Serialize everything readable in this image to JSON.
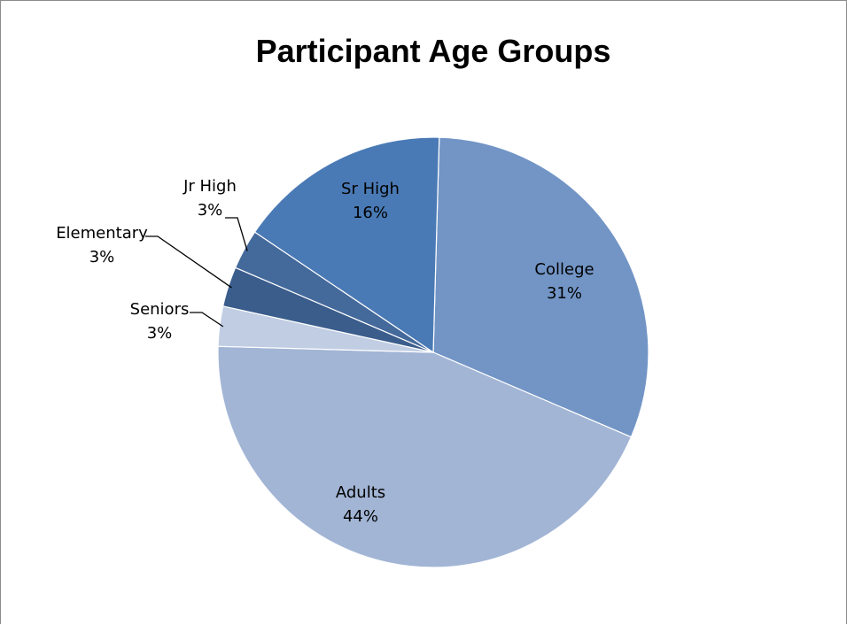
{
  "chart_data": {
    "type": "pie",
    "title": "Participant Age Groups",
    "slices": [
      {
        "label": "College",
        "value": 31,
        "value_label": "31%",
        "color": "#7295c6"
      },
      {
        "label": "Adults",
        "value": 44,
        "value_label": "44%",
        "color": "#a2b5d5"
      },
      {
        "label": "Seniors",
        "value": 3,
        "value_label": "3%",
        "color": "#c0cde3"
      },
      {
        "label": "Elementary",
        "value": 3,
        "value_label": "3%",
        "color": "#3a5d8c"
      },
      {
        "label": "Jr High",
        "value": 3,
        "value_label": "3%",
        "color": "#44699b"
      },
      {
        "label": "Sr High",
        "value": 16,
        "value_label": "16%",
        "color": "#4a7ab5"
      }
    ],
    "legend": "none",
    "slice_border_color": "#ffffff"
  }
}
